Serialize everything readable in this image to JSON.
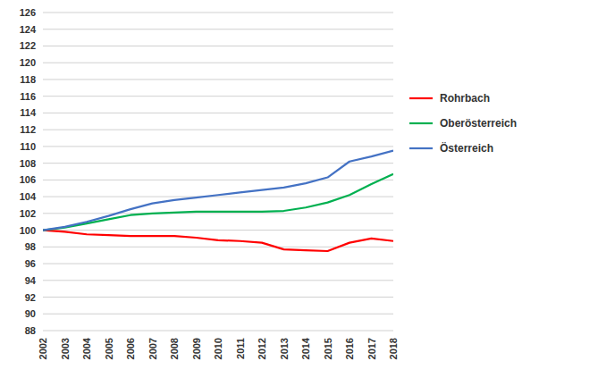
{
  "chart_data": {
    "type": "line",
    "x": [
      2002,
      2003,
      2004,
      2005,
      2006,
      2007,
      2008,
      2009,
      2010,
      2011,
      2012,
      2013,
      2014,
      2015,
      2016,
      2017,
      2018
    ],
    "series": [
      {
        "name": "Rohrbach",
        "color": "#ff0000",
        "values": [
          100.0,
          99.8,
          99.5,
          99.4,
          99.3,
          99.3,
          99.3,
          99.1,
          98.8,
          98.7,
          98.5,
          97.7,
          97.6,
          97.5,
          98.5,
          99.0,
          98.7
        ]
      },
      {
        "name": "Oberösterreich",
        "color": "#00b050",
        "values": [
          100.0,
          100.3,
          100.8,
          101.3,
          101.8,
          102.0,
          102.1,
          102.2,
          102.2,
          102.2,
          102.2,
          102.3,
          102.7,
          103.3,
          104.2,
          105.5,
          106.7
        ]
      },
      {
        "name": "Österreich",
        "color": "#4472c4",
        "values": [
          100.0,
          100.4,
          101.0,
          101.7,
          102.5,
          103.2,
          103.6,
          103.9,
          104.2,
          104.5,
          104.8,
          105.1,
          105.6,
          106.3,
          108.2,
          108.8,
          109.5
        ]
      }
    ],
    "xlim": [
      2002,
      2018
    ],
    "xticks": [
      2002,
      2003,
      2004,
      2005,
      2006,
      2007,
      2008,
      2009,
      2010,
      2011,
      2012,
      2013,
      2014,
      2015,
      2016,
      2017,
      2018
    ],
    "ylim": [
      88,
      126
    ],
    "yticks": [
      88,
      90,
      92,
      94,
      96,
      98,
      100,
      102,
      104,
      106,
      108,
      110,
      112,
      114,
      116,
      118,
      120,
      122,
      124,
      126
    ],
    "grid": true,
    "legend": "right"
  }
}
